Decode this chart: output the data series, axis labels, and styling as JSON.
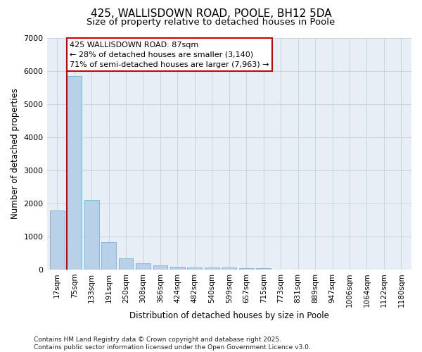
{
  "title1": "425, WALLISDOWN ROAD, POOLE, BH12 5DA",
  "title2": "Size of property relative to detached houses in Poole",
  "xlabel": "Distribution of detached houses by size in Poole",
  "ylabel": "Number of detached properties",
  "categories": [
    "17sqm",
    "75sqm",
    "133sqm",
    "191sqm",
    "250sqm",
    "308sqm",
    "366sqm",
    "424sqm",
    "482sqm",
    "540sqm",
    "599sqm",
    "657sqm",
    "715sqm",
    "773sqm",
    "831sqm",
    "889sqm",
    "947sqm",
    "1006sqm",
    "1064sqm",
    "1122sqm",
    "1180sqm"
  ],
  "values": [
    1780,
    5860,
    2100,
    820,
    330,
    195,
    130,
    90,
    70,
    55,
    50,
    40,
    30,
    0,
    0,
    0,
    0,
    0,
    0,
    0,
    0
  ],
  "bar_color": "#b8d0e8",
  "bar_edge_color": "#7aadd4",
  "property_line_color": "#cc0000",
  "vline_position": 1.0,
  "annotation_text": "425 WALLISDOWN ROAD: 87sqm\n← 28% of detached houses are smaller (3,140)\n71% of semi-detached houses are larger (7,963) →",
  "annotation_box_color": "#ffffff",
  "annotation_box_edge": "#cc0000",
  "ylim": [
    0,
    7000
  ],
  "yticks": [
    0,
    1000,
    2000,
    3000,
    4000,
    5000,
    6000,
    7000
  ],
  "grid_color": "#c8d4e4",
  "background_color": "#e8eef6",
  "footer1": "Contains HM Land Registry data © Crown copyright and database right 2025.",
  "footer2": "Contains public sector information licensed under the Open Government Licence v3.0.",
  "title1_fontsize": 11,
  "title2_fontsize": 9.5,
  "tick_fontsize": 7.5,
  "ylabel_fontsize": 8.5,
  "xlabel_fontsize": 8.5,
  "annotation_fontsize": 8,
  "footer_fontsize": 6.5
}
